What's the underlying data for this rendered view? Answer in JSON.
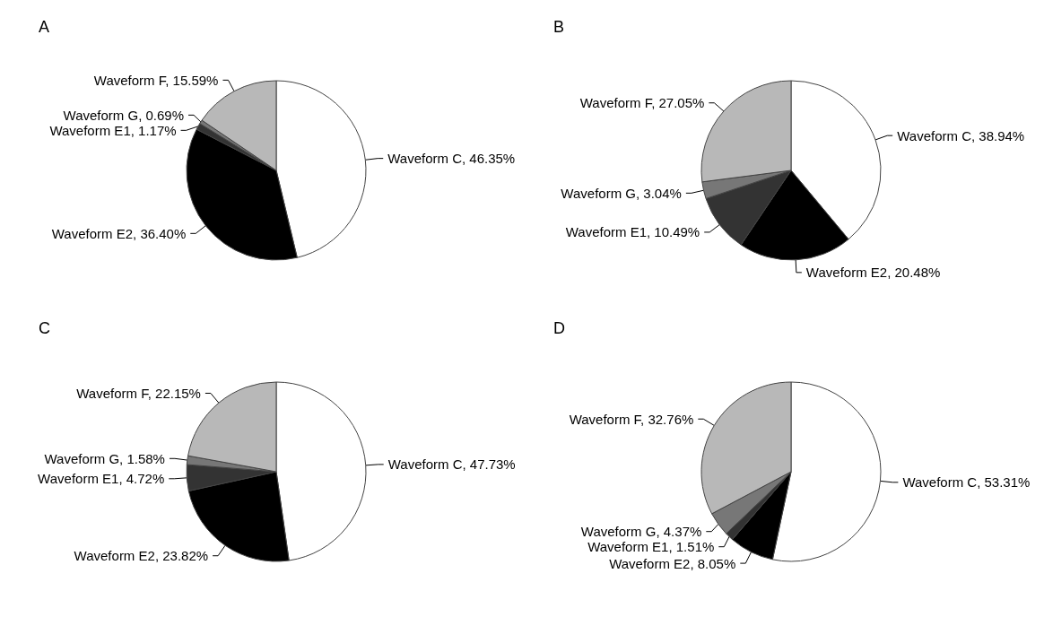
{
  "chart_data": [
    {
      "type": "pie",
      "title": "A",
      "categories": [
        "Waveform C",
        "Waveform E2",
        "Waveform E1",
        "Waveform G",
        "Waveform F"
      ],
      "values": [
        46.35,
        36.4,
        1.17,
        0.69,
        15.59
      ],
      "value_labels": [
        "46.35%",
        "36.40%",
        "1.17%",
        "0.69%",
        "15.59%"
      ],
      "colors": [
        "#ffffff",
        "#000000",
        "#333333",
        "#777777",
        "#b8b8b8"
      ]
    },
    {
      "type": "pie",
      "title": "B",
      "categories": [
        "Waveform C",
        "Waveform E2",
        "Waveform E1",
        "Waveform G",
        "Waveform F"
      ],
      "values": [
        38.94,
        20.48,
        10.49,
        3.04,
        27.05
      ],
      "value_labels": [
        "38.94%",
        "20.48%",
        "10.49%",
        "3.04%",
        "27.05%"
      ],
      "colors": [
        "#ffffff",
        "#000000",
        "#333333",
        "#777777",
        "#b8b8b8"
      ]
    },
    {
      "type": "pie",
      "title": "C",
      "categories": [
        "Waveform C",
        "Waveform E2",
        "Waveform E1",
        "Waveform G",
        "Waveform F"
      ],
      "values": [
        47.73,
        23.82,
        4.72,
        1.58,
        22.15
      ],
      "value_labels": [
        "47.73%",
        "23.82%",
        "4.72%",
        "1.58%",
        "22.15%"
      ],
      "colors": [
        "#ffffff",
        "#000000",
        "#333333",
        "#777777",
        "#b8b8b8"
      ]
    },
    {
      "type": "pie",
      "title": "D",
      "categories": [
        "Waveform C",
        "Waveform E2",
        "Waveform E1",
        "Waveform G",
        "Waveform F"
      ],
      "values": [
        53.31,
        8.05,
        1.51,
        4.37,
        32.76
      ],
      "value_labels": [
        "53.31%",
        "8.05%",
        "1.51%",
        "4.37%",
        "32.76%"
      ],
      "colors": [
        "#ffffff",
        "#000000",
        "#333333",
        "#777777",
        "#b8b8b8"
      ]
    }
  ]
}
